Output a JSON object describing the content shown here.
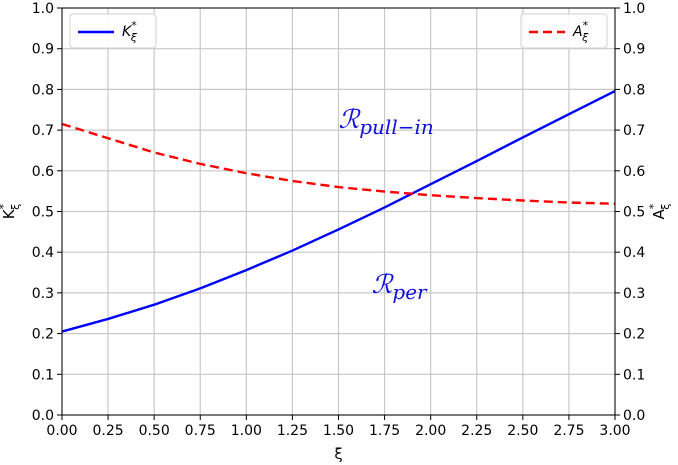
{
  "chart_data": {
    "type": "line",
    "xlabel": "ξ",
    "ylabel_left": "K*ξ",
    "ylabel_right": "A*ξ",
    "xlim": [
      0.0,
      3.0
    ],
    "ylim": [
      0.0,
      1.0
    ],
    "x_ticks": [
      "0.00",
      "0.25",
      "0.50",
      "0.75",
      "1.00",
      "1.25",
      "1.50",
      "1.75",
      "2.00",
      "2.25",
      "2.50",
      "2.75",
      "3.00"
    ],
    "y_ticks_left": [
      "0.0",
      "0.1",
      "0.2",
      "0.3",
      "0.4",
      "0.5",
      "0.6",
      "0.7",
      "0.8",
      "0.9",
      "1.0"
    ],
    "y_ticks_right": [
      "0.0",
      "0.1",
      "0.2",
      "0.3",
      "0.4",
      "0.5",
      "0.6",
      "0.7",
      "0.8",
      "0.9",
      "1.0"
    ],
    "grid": true,
    "series": [
      {
        "name": "K*ξ",
        "axis": "left",
        "color": "#0000ff",
        "style": "solid",
        "x": [
          0.0,
          0.25,
          0.5,
          0.75,
          1.0,
          1.25,
          1.5,
          1.75,
          2.0,
          2.25,
          2.5,
          2.75,
          3.0
        ],
        "values": [
          0.205,
          0.236,
          0.271,
          0.311,
          0.356,
          0.404,
          0.456,
          0.51,
          0.567,
          0.624,
          0.682,
          0.739,
          0.796
        ]
      },
      {
        "name": "A*ξ",
        "axis": "right",
        "color": "#ff0000",
        "style": "dashed",
        "x": [
          0.0,
          0.25,
          0.5,
          0.75,
          1.0,
          1.25,
          1.5,
          1.75,
          2.0,
          2.25,
          2.5,
          2.75,
          3.0
        ],
        "values": [
          0.715,
          0.68,
          0.645,
          0.617,
          0.594,
          0.575,
          0.56,
          0.549,
          0.54,
          0.533,
          0.527,
          0.522,
          0.519
        ]
      }
    ],
    "legends": [
      {
        "position": "top-left",
        "entry": "K*ξ"
      },
      {
        "position": "top-right",
        "entry": "A*ξ"
      }
    ],
    "annotations": [
      {
        "text": "ℛpull−in",
        "x": 1.5,
        "y": 0.705
      },
      {
        "text": "ℛper",
        "x": 1.68,
        "y": 0.3
      }
    ]
  }
}
